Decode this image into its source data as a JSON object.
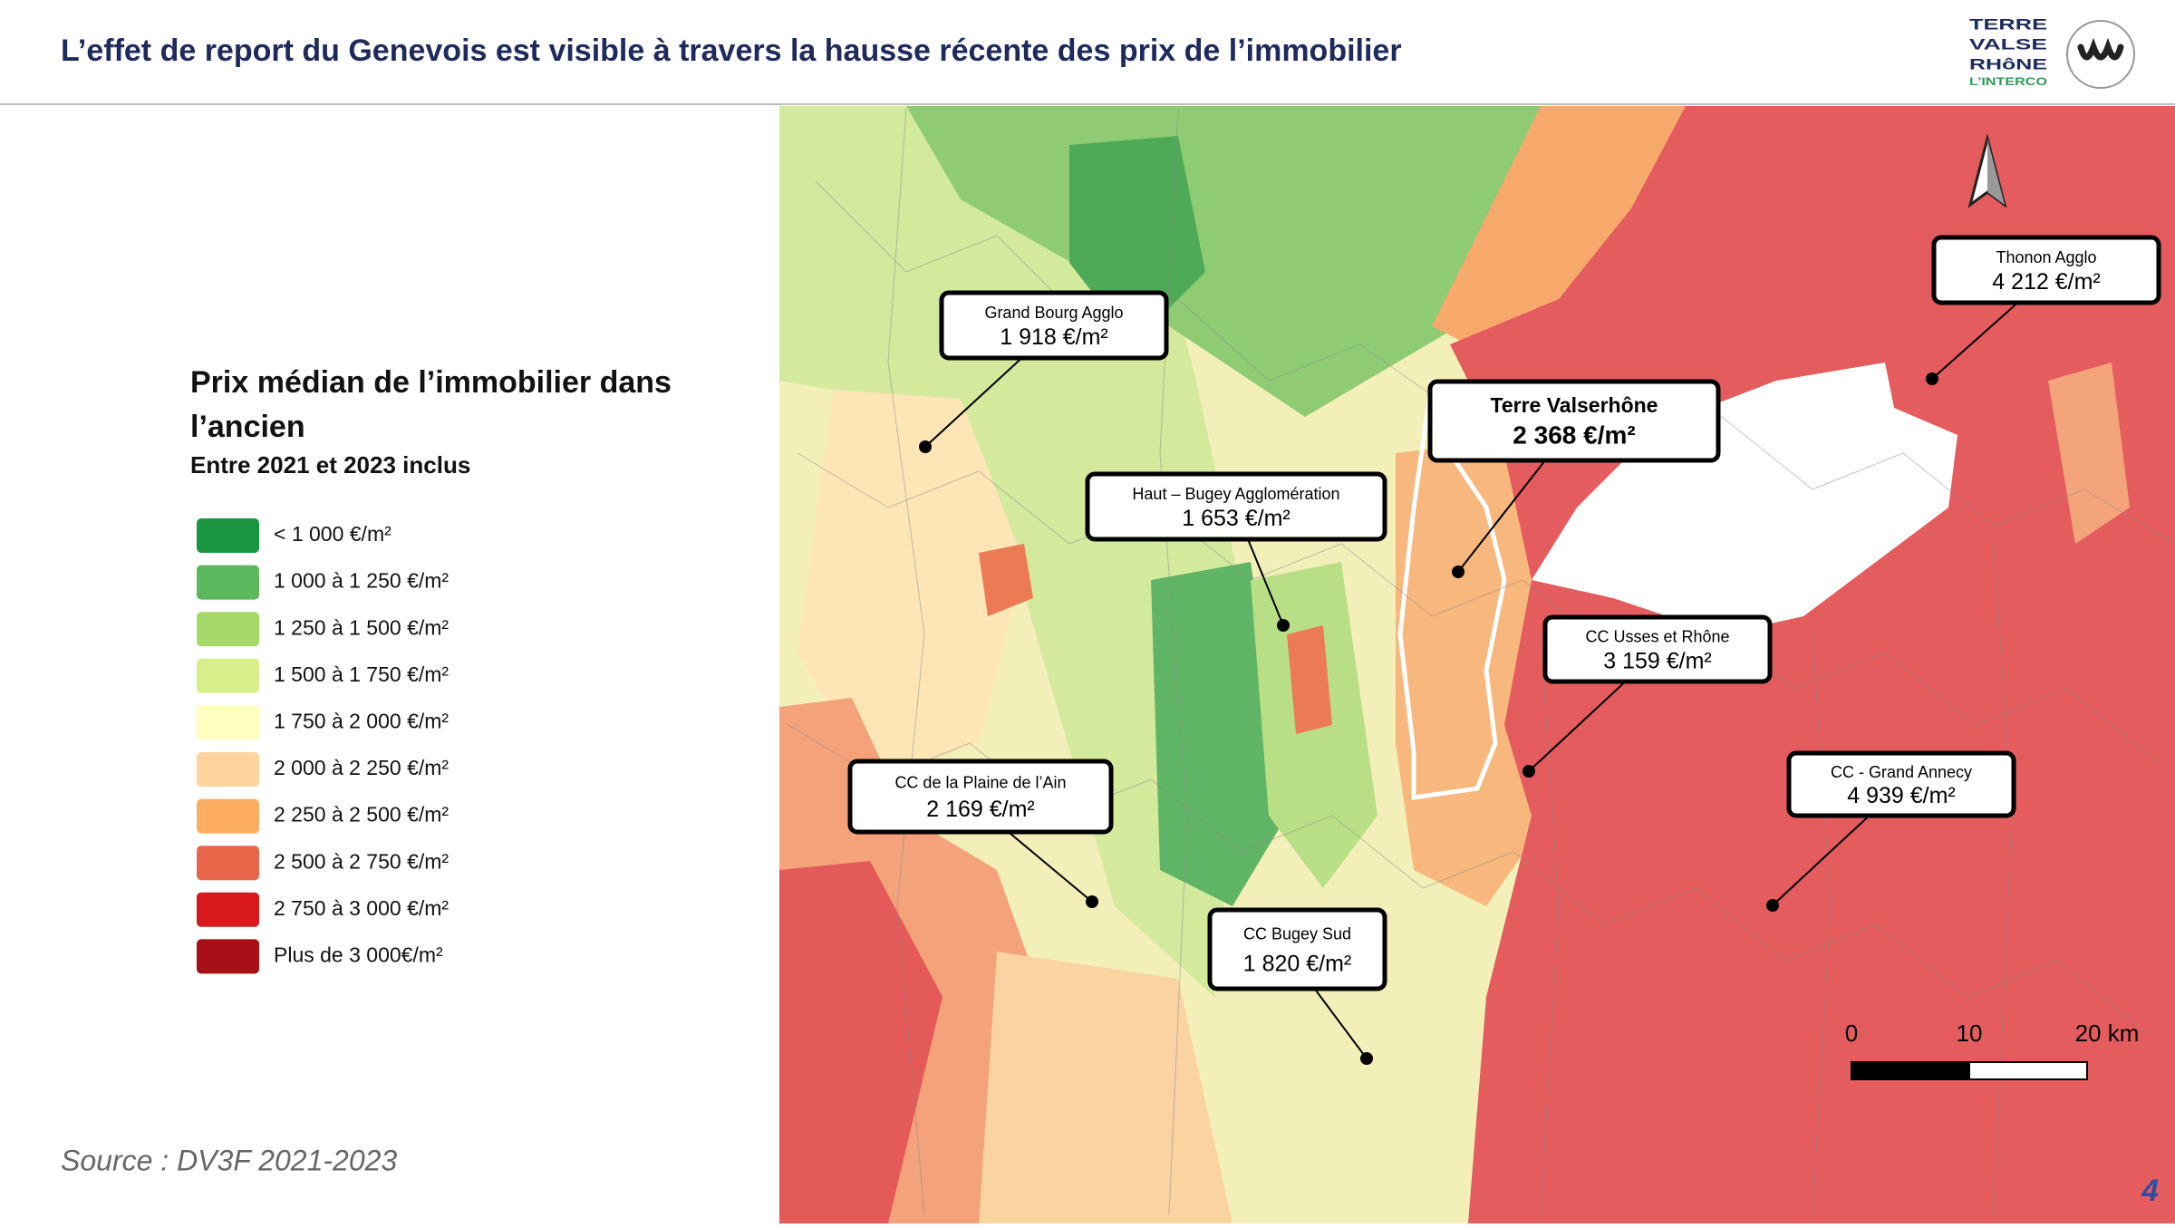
{
  "header": {
    "title": "L’effet de report du Genevois est visible à travers la hausse récente des prix de l’immobilier",
    "logo": [
      "TERRE",
      "VALSE",
      "RHôNE",
      "L’INTERCO"
    ]
  },
  "legend": {
    "title_lines": [
      "Prix médian de l’immobilier dans",
      "l’ancien"
    ],
    "subtitle": "Entre 2021 et 2023 inclus",
    "items": [
      {
        "label": "< 1 000 €/m²",
        "color": "#1a9641"
      },
      {
        "label": "1 000 à 1 250 €/m²",
        "color": "#5cb85c"
      },
      {
        "label": "1 250 à 1 500 €/m²",
        "color": "#a6d96a"
      },
      {
        "label": "1 500 à 1 750 €/m²",
        "color": "#d9ef8b"
      },
      {
        "label": "1 750 à 2 000 €/m²",
        "color": "#ffffbf"
      },
      {
        "label": "2 000 à 2 250 €/m²",
        "color": "#fdd49e"
      },
      {
        "label": "2 250 à 2 500 €/m²",
        "color": "#fdae61"
      },
      {
        "label": "2 500 à 2 750 €/m²",
        "color": "#e8674a"
      },
      {
        "label": "2 750 à 3 000 €/m²",
        "color": "#d7191c"
      },
      {
        "label": "Plus de 3 000€/m²",
        "color": "#a50f15"
      }
    ]
  },
  "callouts": [
    {
      "name": "Grand Bourg Agglo",
      "value": "1 918 €/m²"
    },
    {
      "name": "Terre Valserhône",
      "value": "2 368 €/m²"
    },
    {
      "name": "Haut – Bugey Agglomération",
      "value": "1 653 €/m²"
    },
    {
      "name": "CC Usses et Rhône",
      "value": "3 159 €/m²"
    },
    {
      "name": "Thonon Agglo",
      "value": "4 212 €/m²"
    },
    {
      "name": "CC - Grand Annecy",
      "value": "4 939 €/m²"
    },
    {
      "name": "CC de la Plaine de l’Ain",
      "value": "2 169 €/m²"
    },
    {
      "name": "CC Bugey Sud",
      "value": "1 820 €/m²"
    }
  ],
  "scale_bar": [
    "0",
    "10",
    "20 km"
  ],
  "source": "Source : DV3F 2021-2023",
  "page_number": "4"
}
